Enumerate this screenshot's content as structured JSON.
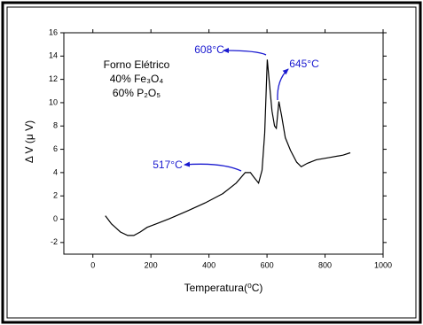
{
  "chart_data": {
    "type": "line",
    "x_label": "Temperatura(⁰C)",
    "y_label": "Δ V (μ V)",
    "legend_text": [
      "Forno Elétrico",
      "40% Fe₃O₄",
      "60% P₂O₅"
    ],
    "annotations": [
      "608°C",
      "645°C",
      "517°C"
    ],
    "annotation_color": "#1a1ad0",
    "xlim": [
      -100,
      1000
    ],
    "xticks": [
      0,
      200,
      400,
      600,
      800,
      1000
    ],
    "ylim": [
      -3,
      16
    ],
    "yticks": [
      -2,
      0,
      2,
      4,
      6,
      8,
      10,
      12,
      14,
      16
    ],
    "series": [
      {
        "color": "#000000",
        "x": [
          43,
          64,
          95,
          120,
          141,
          163,
          187,
          218,
          264,
          325,
          387,
          448,
          494,
          525,
          543,
          555,
          571,
          583,
          592,
          601,
          607,
          617,
          626,
          632,
          641,
          650,
          663,
          681,
          702,
          718,
          739,
          770,
          816,
          862,
          887
        ],
        "values": [
          0.3,
          -0.4,
          -1.1,
          -1.4,
          -1.4,
          -1.1,
          -0.7,
          -0.4,
          0.05,
          0.7,
          1.4,
          2.2,
          3.1,
          4.0,
          4.0,
          3.6,
          3.1,
          4.2,
          7.4,
          13.7,
          12.0,
          9.3,
          8.0,
          7.8,
          10.1,
          8.9,
          7.0,
          5.9,
          4.9,
          4.5,
          4.8,
          5.1,
          5.3,
          5.5,
          5.7
        ]
      }
    ]
  }
}
